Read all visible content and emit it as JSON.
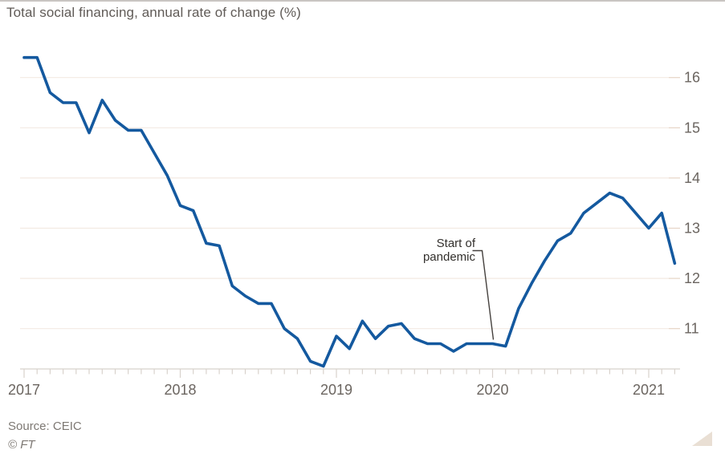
{
  "footer": {
    "source": "Source: CEIC",
    "copyright": "© FT"
  },
  "colors": {
    "line": "#14599f",
    "gridline": "#f3eae2",
    "grid_tick": "#e6d4c5",
    "axis": "#d8d2cc",
    "tick_label": "#6b6560",
    "title": "#605b57",
    "annotation_text": "#33302d",
    "annotation_line": "#45413e",
    "footer_text": "#7d7873",
    "top_border": "#c9c5c2",
    "resize_handle": "#e9dfd4",
    "background": "#ffffff"
  },
  "chart_data": {
    "type": "line",
    "title": "Total social financing, annual rate of change (%)",
    "xlabel": "",
    "ylabel": "annual rate of change (%)",
    "x_tick_labels": [
      "2017",
      "2018",
      "2019",
      "2020",
      "2021"
    ],
    "y_ticks": [
      11,
      12,
      13,
      14,
      15,
      16
    ],
    "ylim": [
      10.2,
      16.6
    ],
    "grid": "horizontal",
    "legend": "none",
    "frequency": "monthly",
    "categories": [
      "Jan 2017",
      "Feb 2017",
      "Mar 2017",
      "Apr 2017",
      "May 2017",
      "Jun 2017",
      "Jul 2017",
      "Aug 2017",
      "Sep 2017",
      "Oct 2017",
      "Nov 2017",
      "Dec 2017",
      "Jan 2018",
      "Feb 2018",
      "Mar 2018",
      "Apr 2018",
      "May 2018",
      "Jun 2018",
      "Jul 2018",
      "Aug 2018",
      "Sep 2018",
      "Oct 2018",
      "Nov 2018",
      "Dec 2018",
      "Jan 2019",
      "Feb 2019",
      "Mar 2019",
      "Apr 2019",
      "May 2019",
      "Jun 2019",
      "Jul 2019",
      "Aug 2019",
      "Sep 2019",
      "Oct 2019",
      "Nov 2019",
      "Dec 2019",
      "Jan 2020",
      "Feb 2020",
      "Mar 2020",
      "Apr 2020",
      "May 2020",
      "Jun 2020",
      "Jul 2020",
      "Aug 2020",
      "Sep 2020",
      "Oct 2020",
      "Nov 2020",
      "Dec 2020",
      "Jan 2021",
      "Feb 2021",
      "Mar 2021"
    ],
    "series": [
      {
        "name": "Total social financing",
        "values": [
          16.4,
          16.4,
          15.7,
          15.5,
          15.5,
          14.9,
          15.55,
          15.15,
          14.95,
          14.95,
          14.5,
          14.05,
          13.45,
          13.35,
          12.7,
          12.65,
          11.85,
          11.65,
          11.5,
          11.5,
          11.0,
          10.8,
          10.35,
          10.25,
          10.85,
          10.6,
          11.15,
          10.8,
          11.05,
          11.1,
          10.8,
          10.7,
          10.7,
          10.55,
          10.7,
          10.7,
          10.7,
          10.65,
          11.4,
          11.9,
          12.35,
          12.75,
          12.9,
          13.3,
          13.5,
          13.7,
          13.6,
          13.3,
          13.0,
          13.3,
          12.3
        ]
      }
    ],
    "annotation": {
      "label": "Start of pandemic",
      "line1": "Start of",
      "line2": "pandemic",
      "target_month": "Jan 2020",
      "target_index": 36
    }
  }
}
